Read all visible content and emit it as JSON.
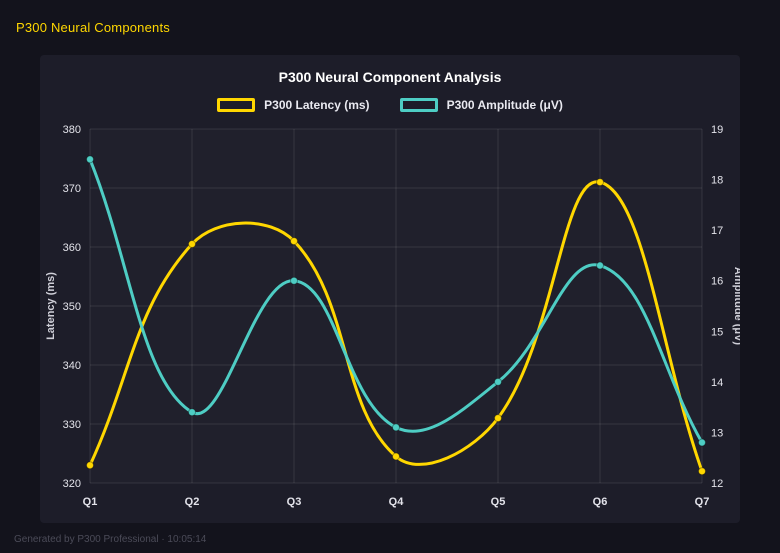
{
  "page": {
    "title": "P300 Neural Components",
    "footer": "Generated by P300 Professional · 10:05:14"
  },
  "chart_data": {
    "type": "line",
    "title": "P300 Neural Component Analysis",
    "categories": [
      "Q1",
      "Q2",
      "Q3",
      "Q4",
      "Q5",
      "Q6",
      "Q7"
    ],
    "series": [
      {
        "name": "P300 Latency (ms)",
        "axis": "left",
        "color": "#FFD700",
        "values": [
          323,
          360.5,
          361,
          324.5,
          331,
          371,
          322
        ]
      },
      {
        "name": "P300 Amplitude (μV)",
        "axis": "right",
        "color": "#4ECDC4",
        "values": [
          18.4,
          13.4,
          16.0,
          13.1,
          14.0,
          16.3,
          12.8
        ]
      }
    ],
    "left_axis": {
      "label": "Latency (ms)",
      "min": 320,
      "max": 380,
      "step": 10
    },
    "right_axis": {
      "label": "Amplitude (μV)",
      "min": 12,
      "max": 19,
      "step": 1
    },
    "grid": true,
    "legend_position": "top",
    "line_tension": 0.4
  }
}
